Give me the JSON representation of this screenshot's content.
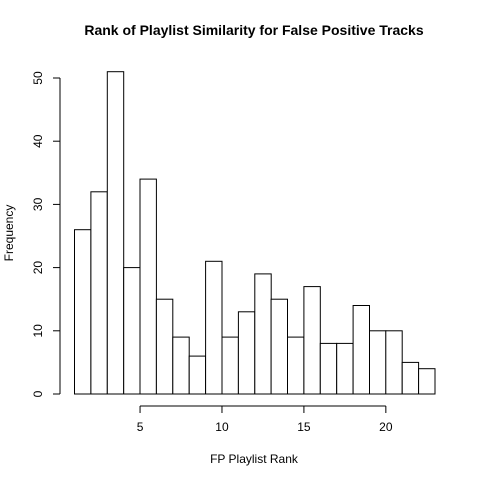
{
  "chart_data": {
    "type": "bar",
    "title": "Rank of Playlist Similarity for False Positive Tracks",
    "xlabel": "FP Playlist Rank",
    "ylabel": "Frequency",
    "bins": [
      {
        "from": 1,
        "to": 2,
        "value": 26
      },
      {
        "from": 2,
        "to": 3,
        "value": 32
      },
      {
        "from": 3,
        "to": 4,
        "value": 51
      },
      {
        "from": 4,
        "to": 5,
        "value": 20
      },
      {
        "from": 5,
        "to": 6,
        "value": 34
      },
      {
        "from": 6,
        "to": 7,
        "value": 15
      },
      {
        "from": 7,
        "to": 8,
        "value": 9
      },
      {
        "from": 8,
        "to": 9,
        "value": 6
      },
      {
        "from": 9,
        "to": 10,
        "value": 21
      },
      {
        "from": 10,
        "to": 11,
        "value": 9
      },
      {
        "from": 11,
        "to": 12,
        "value": 13
      },
      {
        "from": 12,
        "to": 13,
        "value": 19
      },
      {
        "from": 13,
        "to": 14,
        "value": 15
      },
      {
        "from": 14,
        "to": 15,
        "value": 9
      },
      {
        "from": 15,
        "to": 16,
        "value": 17
      },
      {
        "from": 16,
        "to": 17,
        "value": 8
      },
      {
        "from": 17,
        "to": 18,
        "value": 8
      },
      {
        "from": 18,
        "to": 19,
        "value": 14
      },
      {
        "from": 19,
        "to": 20,
        "value": 10
      },
      {
        "from": 20,
        "to": 21,
        "value": 10
      },
      {
        "from": 21,
        "to": 22,
        "value": 5
      },
      {
        "from": 22,
        "to": 23,
        "value": 4
      }
    ],
    "x_ticks": [
      5,
      10,
      15,
      20
    ],
    "y_ticks": [
      0,
      10,
      20,
      30,
      40,
      50
    ],
    "xlim": [
      1,
      23
    ],
    "ylim": [
      0,
      51
    ],
    "grid": false,
    "legend": "none"
  }
}
